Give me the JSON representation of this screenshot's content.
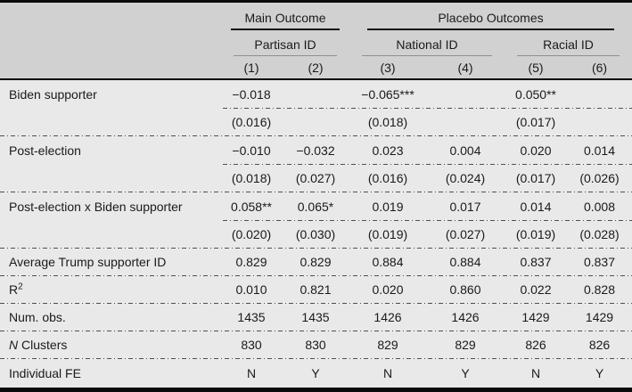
{
  "colors": {
    "header_bg": "#d1d1d1",
    "body_bg": "#e9e9e9",
    "rule_black": "#0a0a0a",
    "subgroup_rule_gray": "#8f8f8f",
    "dotted_separator": "#4f4f4f",
    "text": "#1a1a1a"
  },
  "header": {
    "groups": [
      {
        "label": "Main Outcome"
      },
      {
        "label": "Placebo Outcomes"
      }
    ],
    "subgroups": [
      {
        "label": "Partisan ID"
      },
      {
        "label": "National ID"
      },
      {
        "label": "Racial ID"
      }
    ],
    "columns": [
      "(1)",
      "(2)",
      "(3)",
      "(4)",
      "(5)",
      "(6)"
    ]
  },
  "body": [
    {
      "label": "Biden supporter",
      "values": [
        "−0.018",
        "",
        "−0.065***",
        "",
        "0.050**",
        ""
      ],
      "se": [
        "(0.016)",
        "",
        "(0.018)",
        "",
        "(0.017)",
        ""
      ]
    },
    {
      "label": "Post-election",
      "values": [
        "−0.010",
        "−0.032",
        "0.023",
        "0.004",
        "0.020",
        "0.014"
      ],
      "se": [
        "(0.018)",
        "(0.027)",
        "(0.016)",
        "(0.024)",
        "(0.017)",
        "(0.026)"
      ]
    },
    {
      "label": "Post-election x Biden supporter",
      "values": [
        "0.058**",
        "0.065*",
        "0.019",
        "0.017",
        "0.014",
        "0.008"
      ],
      "se": [
        "(0.020)",
        "(0.030)",
        "(0.019)",
        "(0.027)",
        "(0.019)",
        "(0.028)"
      ]
    },
    {
      "label": "Average Trump supporter ID",
      "values": [
        "0.829",
        "0.829",
        "0.884",
        "0.884",
        "0.837",
        "0.837"
      ]
    },
    {
      "label": "R",
      "label_sup": "2",
      "values": [
        "0.010",
        "0.821",
        "0.020",
        "0.860",
        "0.022",
        "0.828"
      ]
    },
    {
      "label": "Num. obs.",
      "values": [
        "1435",
        "1435",
        "1426",
        "1426",
        "1429",
        "1429"
      ]
    },
    {
      "label_italic": "N",
      "label": " Clusters",
      "values": [
        "830",
        "830",
        "829",
        "829",
        "826",
        "826"
      ]
    },
    {
      "label": "Individual FE",
      "values": [
        "N",
        "Y",
        "N",
        "Y",
        "N",
        "Y"
      ]
    }
  ]
}
